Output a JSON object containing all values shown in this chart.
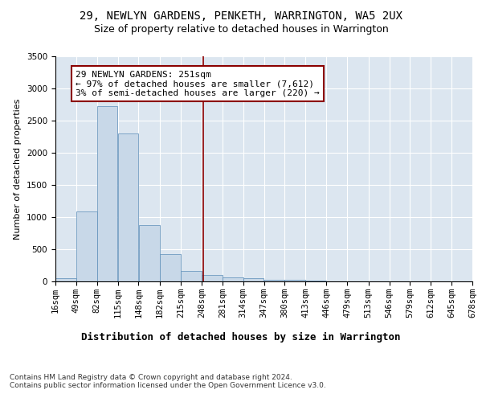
{
  "title": "29, NEWLYN GARDENS, PENKETH, WARRINGTON, WA5 2UX",
  "subtitle": "Size of property relative to detached houses in Warrington",
  "xlabel": "Distribution of detached houses by size in Warrington",
  "ylabel": "Number of detached properties",
  "bar_color": "#c8d8e8",
  "bar_edge_color": "#5b8db8",
  "background_color": "#dce6f0",
  "grid_color": "#ffffff",
  "vline_x": 251,
  "vline_color": "#8b0000",
  "annotation_text": "29 NEWLYN GARDENS: 251sqm\n← 97% of detached houses are smaller (7,612)\n3% of semi-detached houses are larger (220) →",
  "annotation_box_color": "#ffffff",
  "annotation_border_color": "#8b0000",
  "bins": [
    16,
    49,
    82,
    115,
    148,
    182,
    215,
    248,
    281,
    314,
    347,
    380,
    413,
    446,
    479,
    513,
    546,
    579,
    612,
    645,
    678
  ],
  "bar_heights": [
    50,
    1090,
    2720,
    2300,
    870,
    420,
    160,
    100,
    60,
    45,
    30,
    20,
    10,
    5,
    3,
    2,
    1,
    1,
    0,
    0
  ],
  "xlim": [
    16,
    678
  ],
  "ylim": [
    0,
    3500
  ],
  "yticks": [
    0,
    500,
    1000,
    1500,
    2000,
    2500,
    3000,
    3500
  ],
  "footer_text": "Contains HM Land Registry data © Crown copyright and database right 2024.\nContains public sector information licensed under the Open Government Licence v3.0.",
  "title_fontsize": 10,
  "subtitle_fontsize": 9,
  "xlabel_fontsize": 9,
  "ylabel_fontsize": 8,
  "tick_fontsize": 7.5,
  "annotation_fontsize": 8,
  "footer_fontsize": 6.5
}
